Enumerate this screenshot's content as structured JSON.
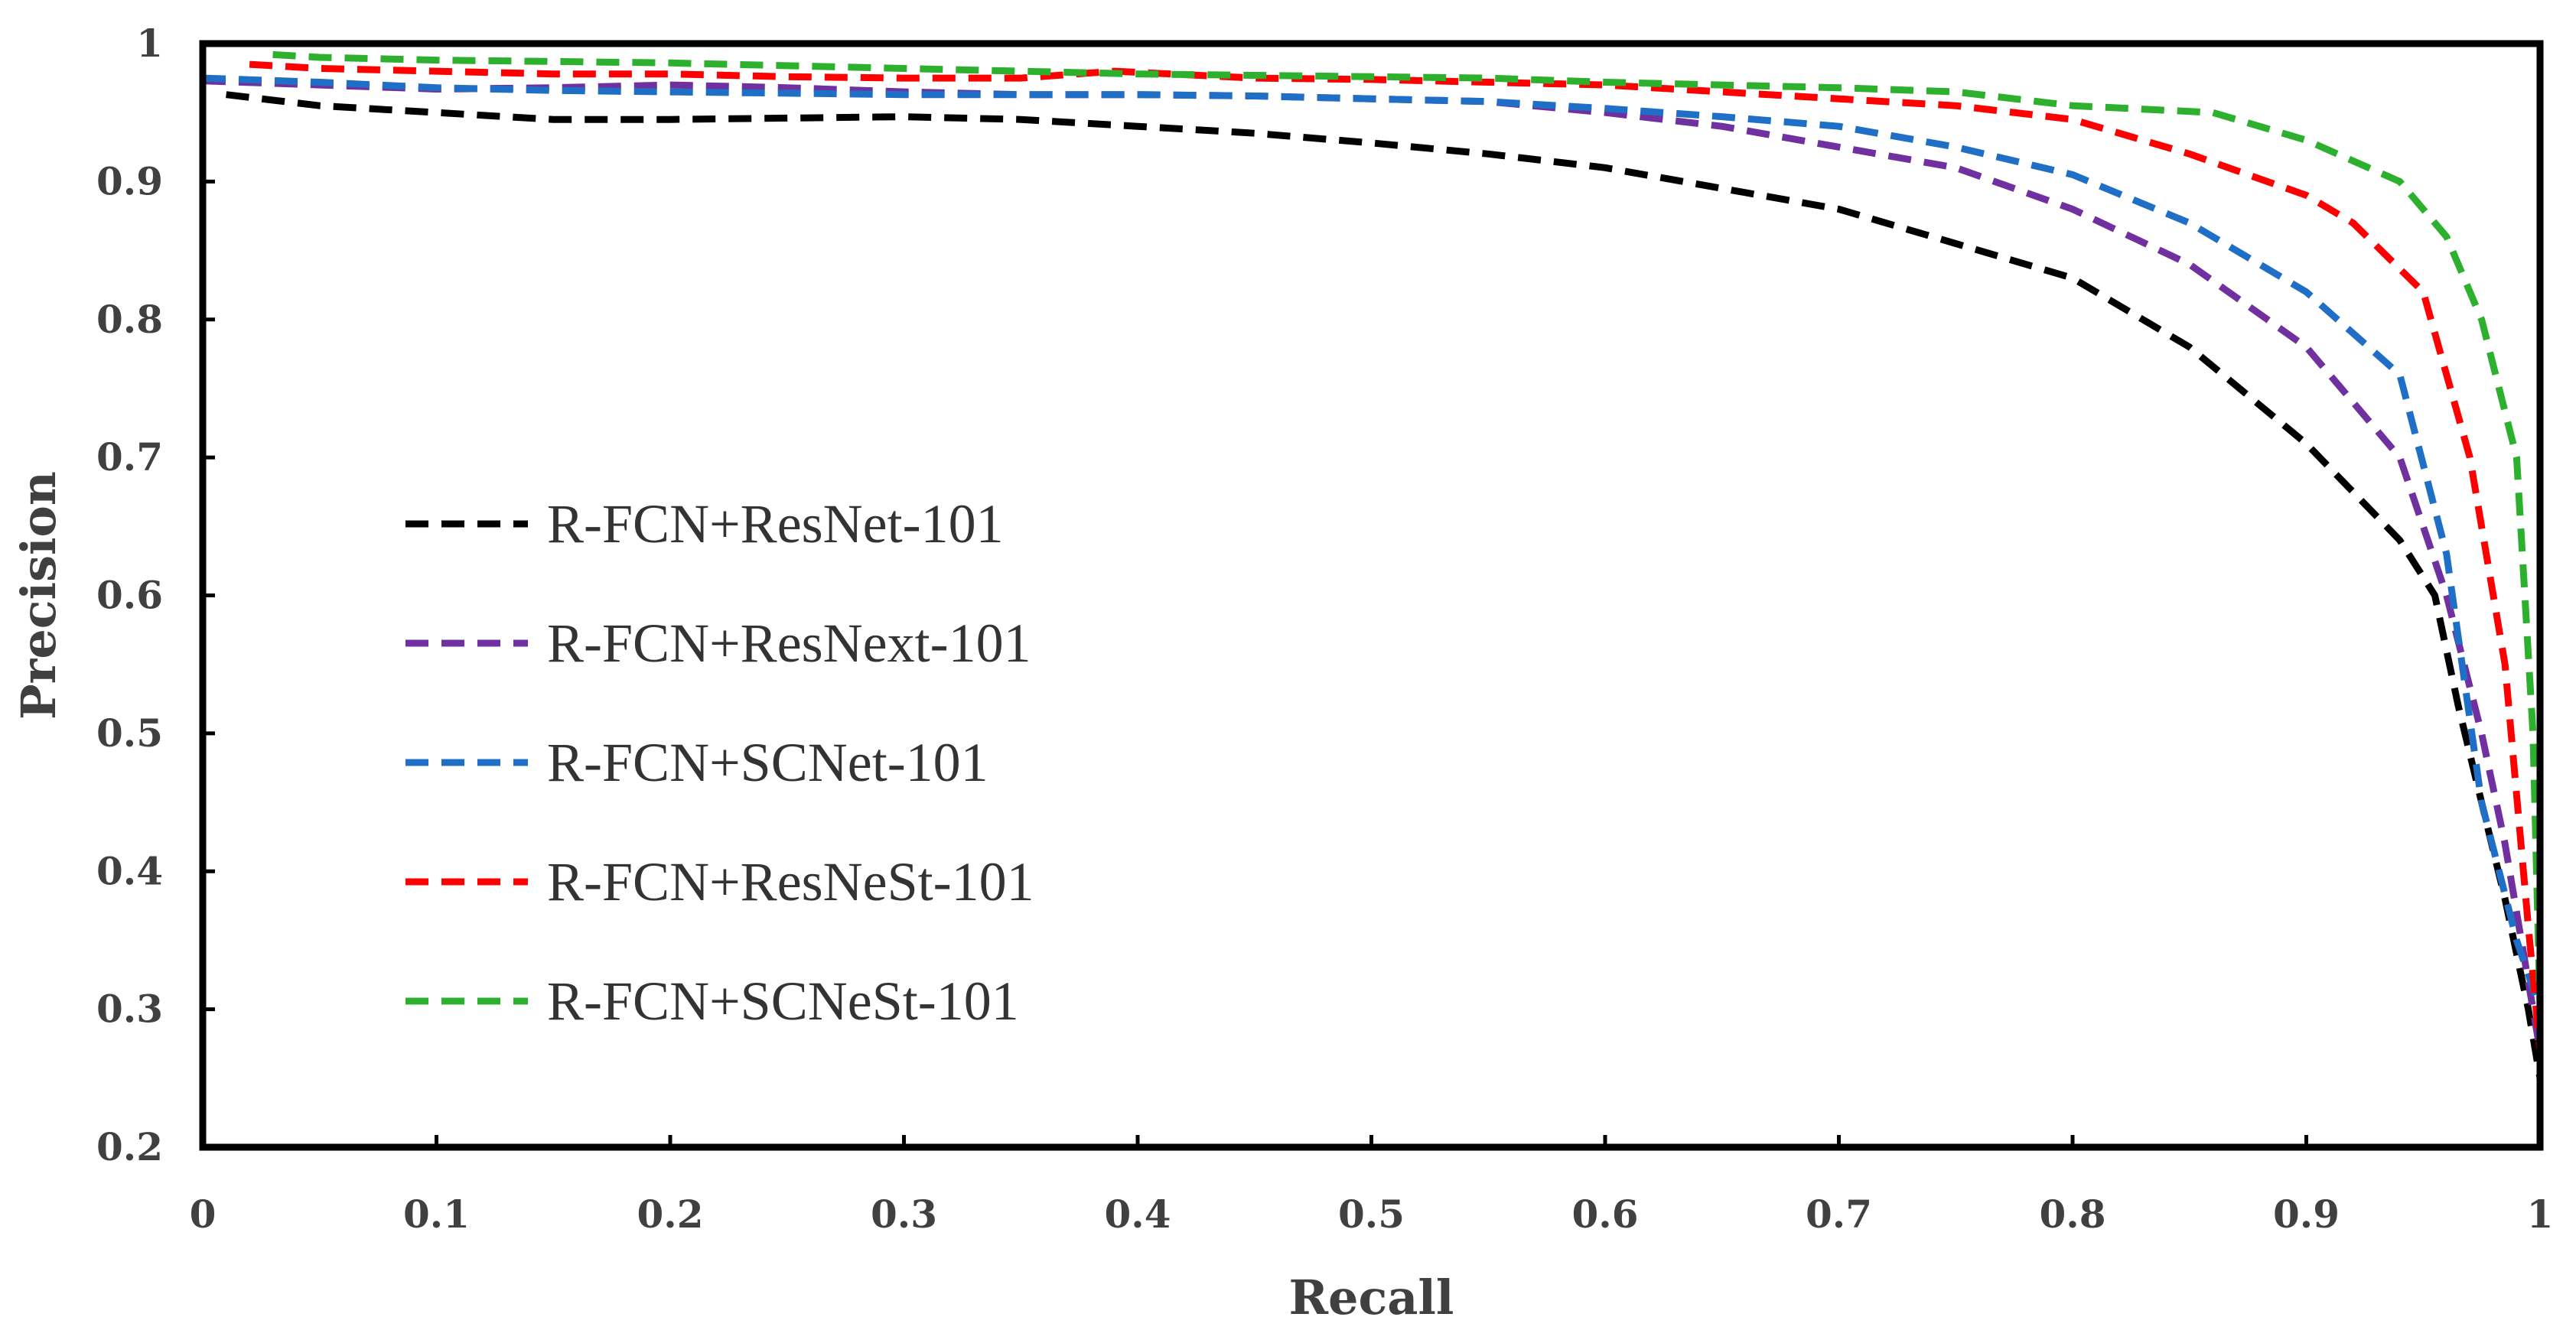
{
  "chart_data": {
    "type": "line",
    "xlabel": "Recall",
    "ylabel": "Precision",
    "xlim": [
      0,
      1
    ],
    "ylim": [
      0.2,
      1
    ],
    "xticks": [
      "0",
      "0.1",
      "0.2",
      "0.3",
      "0.4",
      "0.5",
      "0.6",
      "0.7",
      "0.8",
      "0.9",
      "1"
    ],
    "yticks": [
      "0.2",
      "0.3",
      "0.4",
      "0.5",
      "0.6",
      "0.7",
      "0.8",
      "0.9",
      "1"
    ],
    "legend_position": "center-left",
    "series": [
      {
        "name": "R-FCN+ResNet-101",
        "color": "#000000",
        "x": [
          0.01,
          0.05,
          0.1,
          0.15,
          0.2,
          0.25,
          0.3,
          0.35,
          0.4,
          0.45,
          0.5,
          0.55,
          0.6,
          0.65,
          0.7,
          0.75,
          0.8,
          0.85,
          0.9,
          0.94,
          0.955,
          0.965,
          0.975,
          0.985,
          0.995,
          1.0
        ],
        "y": [
          0.963,
          0.955,
          0.95,
          0.945,
          0.945,
          0.946,
          0.947,
          0.945,
          0.94,
          0.935,
          0.928,
          0.92,
          0.91,
          0.895,
          0.88,
          0.855,
          0.83,
          0.78,
          0.71,
          0.64,
          0.6,
          0.52,
          0.45,
          0.38,
          0.3,
          0.25
        ]
      },
      {
        "name": "R-FCN+ResNext-101",
        "color": "#7030a0",
        "x": [
          0.0,
          0.05,
          0.1,
          0.15,
          0.2,
          0.25,
          0.3,
          0.35,
          0.4,
          0.45,
          0.5,
          0.55,
          0.6,
          0.65,
          0.7,
          0.75,
          0.8,
          0.85,
          0.9,
          0.94,
          0.96,
          0.975,
          0.985,
          0.995,
          1.0
        ],
        "y": [
          0.973,
          0.97,
          0.967,
          0.968,
          0.97,
          0.968,
          0.965,
          0.963,
          0.963,
          0.962,
          0.96,
          0.958,
          0.95,
          0.94,
          0.925,
          0.91,
          0.88,
          0.84,
          0.78,
          0.7,
          0.6,
          0.5,
          0.42,
          0.32,
          0.27
        ]
      },
      {
        "name": "R-FCN+SCNet-101",
        "color": "#1f6fc6",
        "x": [
          0.0,
          0.05,
          0.1,
          0.15,
          0.2,
          0.25,
          0.3,
          0.35,
          0.4,
          0.45,
          0.5,
          0.55,
          0.6,
          0.65,
          0.7,
          0.75,
          0.8,
          0.85,
          0.9,
          0.94,
          0.96,
          0.975,
          0.99,
          1.0
        ],
        "y": [
          0.975,
          0.972,
          0.968,
          0.966,
          0.965,
          0.964,
          0.963,
          0.963,
          0.963,
          0.962,
          0.96,
          0.958,
          0.953,
          0.947,
          0.94,
          0.925,
          0.905,
          0.87,
          0.82,
          0.76,
          0.63,
          0.45,
          0.35,
          0.3
        ]
      },
      {
        "name": "R-FCN+ResNeSt-101",
        "color": "#ff0000",
        "x": [
          0.02,
          0.05,
          0.1,
          0.15,
          0.2,
          0.25,
          0.3,
          0.35,
          0.39,
          0.45,
          0.5,
          0.55,
          0.6,
          0.65,
          0.7,
          0.75,
          0.8,
          0.85,
          0.9,
          0.92,
          0.95,
          0.97,
          0.985,
          0.995,
          1.0
        ],
        "y": [
          0.985,
          0.982,
          0.98,
          0.978,
          0.978,
          0.976,
          0.975,
          0.975,
          0.98,
          0.975,
          0.974,
          0.972,
          0.97,
          0.965,
          0.96,
          0.955,
          0.945,
          0.92,
          0.89,
          0.87,
          0.82,
          0.7,
          0.55,
          0.36,
          0.27
        ]
      },
      {
        "name": "R-FCN+SCNeSt-101",
        "color": "#2db02d",
        "x": [
          0.03,
          0.05,
          0.1,
          0.15,
          0.2,
          0.25,
          0.3,
          0.35,
          0.4,
          0.45,
          0.5,
          0.55,
          0.6,
          0.65,
          0.7,
          0.75,
          0.8,
          0.86,
          0.9,
          0.94,
          0.96,
          0.975,
          0.99,
          0.997,
          1.0
        ],
        "y": [
          0.992,
          0.99,
          0.988,
          0.987,
          0.986,
          0.984,
          0.982,
          0.98,
          0.978,
          0.977,
          0.976,
          0.975,
          0.972,
          0.97,
          0.968,
          0.965,
          0.955,
          0.95,
          0.93,
          0.9,
          0.86,
          0.8,
          0.7,
          0.5,
          0.3
        ]
      }
    ]
  }
}
